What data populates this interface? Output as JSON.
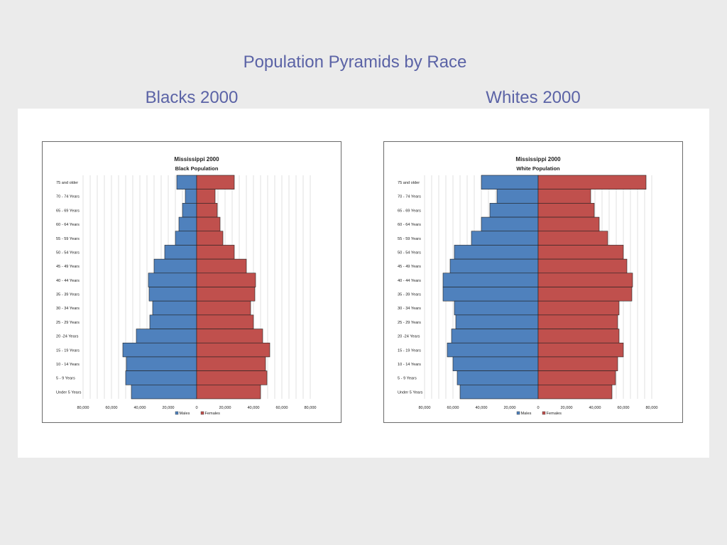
{
  "slide": {
    "title": "Population Pyramids by Race",
    "left_subtitle": "Blacks 2000",
    "right_subtitle": "Whites 2000"
  },
  "colors": {
    "males": "#4f81bd",
    "females": "#c0504d",
    "title_text": "#5b63a6"
  },
  "chart_data": [
    {
      "type": "bar",
      "orientation": "horizontal-pyramid",
      "title": "Mississippi 2000",
      "subtitle": "Black Population",
      "categories": [
        "75 and older",
        "70 - 74 Years",
        "65 - 69 Years",
        "60 - 64 Years",
        "55 - 59 Years",
        "50 - 54 Years",
        "45 - 49 Years",
        "40 - 44 Years",
        "35 - 39 Years",
        "30 - 34 Years",
        "25 - 29 Years",
        "20 -24 Years",
        "15 - 19 Years",
        "10 - 14 Years",
        "5 - 9 Years",
        "Under 5 Years"
      ],
      "series": [
        {
          "name": "Males",
          "values": [
            14000,
            8000,
            10000,
            12500,
            15000,
            22500,
            30000,
            34000,
            33500,
            31000,
            33000,
            42500,
            52000,
            49500,
            50000,
            46000
          ]
        },
        {
          "name": "Females",
          "values": [
            26500,
            13000,
            14500,
            16500,
            18500,
            26500,
            35000,
            41500,
            41000,
            38000,
            40000,
            46500,
            51500,
            48500,
            49500,
            45000
          ]
        }
      ],
      "xlim": [
        -80000,
        80000
      ],
      "x_ticks": [
        "80,000",
        "60,000",
        "40,000",
        "20,000",
        "0",
        "20,000",
        "40,000",
        "60,000",
        "80,000"
      ],
      "grid": true,
      "legend": "bottom"
    },
    {
      "type": "bar",
      "orientation": "horizontal-pyramid",
      "title": "Mississippi 2000",
      "subtitle": "White Population",
      "categories": [
        "75 and older",
        "70 - 74 Years",
        "65 - 69 Years",
        "60 - 64 Years",
        "55 - 59 Years",
        "50 - 54 Years",
        "45 - 49 Years",
        "40 - 44 Years",
        "35 - 39 Years",
        "30 - 34 Years",
        "25 - 29 Years",
        "20 -24 Years",
        "15 - 19 Years",
        "10 - 14 Years",
        "5 - 9 Years",
        "Under 5 Years"
      ],
      "series": [
        {
          "name": "Males",
          "values": [
            40000,
            29000,
            34000,
            40000,
            47000,
            59000,
            62000,
            67000,
            67000,
            59000,
            58000,
            61000,
            64000,
            60000,
            57000,
            55000
          ]
        },
        {
          "name": "Females",
          "values": [
            76000,
            37000,
            39500,
            43000,
            49000,
            60000,
            62500,
            66500,
            66000,
            57000,
            56000,
            57000,
            60000,
            56000,
            54500,
            52000
          ]
        }
      ],
      "xlim": [
        -80000,
        80000
      ],
      "x_ticks": [
        "80,000",
        "60,000",
        "40,000",
        "20,000",
        "0",
        "20,000",
        "40,000",
        "60,000",
        "80,000"
      ],
      "grid": true,
      "legend": "bottom"
    }
  ]
}
